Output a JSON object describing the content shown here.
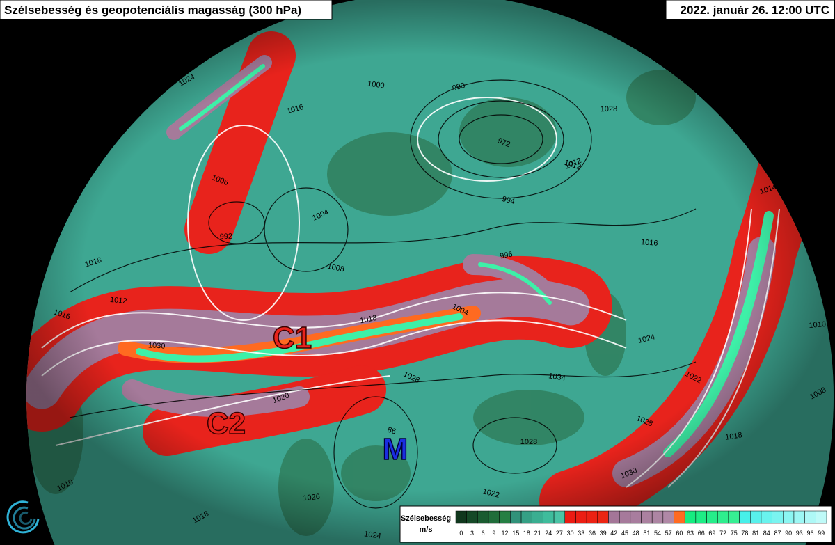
{
  "header": {
    "title": "Szélsebesség és geopotenciális magasság (300 hPa)",
    "date": "2022. január 26. 12:00 UTC"
  },
  "map": {
    "jet_labels": [
      "C1",
      "C2"
    ],
    "pressure_labels": [
      "M"
    ],
    "contour_labels": [
      "1024",
      "1000",
      "1016",
      "1006",
      "992",
      "1004",
      "1008",
      "1018",
      "1028",
      "1030",
      "1020",
      "86",
      "1026",
      "1018",
      "1024",
      "990",
      "972",
      "1028",
      "1012",
      "994",
      "996",
      "1004",
      "1016",
      "1014",
      "1012",
      "1010",
      "1008",
      "1034",
      "1024",
      "1028",
      "1028",
      "1030",
      "1022",
      "1018",
      "1022",
      "1012",
      "1018",
      "1016",
      "1014",
      "1010"
    ]
  },
  "legend": {
    "title": "Szélsebesség",
    "unit": "m/s",
    "ticks": [
      0,
      3,
      6,
      9,
      12,
      15,
      18,
      21,
      24,
      27,
      30,
      33,
      36,
      39,
      42,
      45,
      48,
      51,
      54,
      57,
      60,
      63,
      66,
      69,
      72,
      75,
      78,
      81,
      84,
      87,
      90,
      93,
      96,
      99
    ]
  }
}
